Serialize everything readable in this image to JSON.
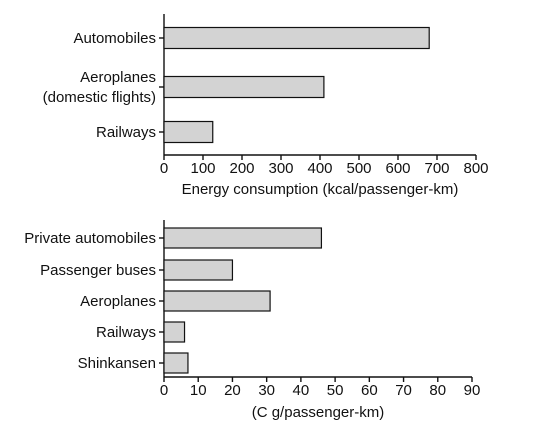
{
  "chart_data": [
    {
      "type": "bar",
      "orientation": "horizontal",
      "categories": [
        "Automobiles",
        "Aeroplanes\n(domestic flights)",
        "Railways"
      ],
      "values": [
        680,
        410,
        125
      ],
      "xlabel": "Energy consumption (kcal/passenger-km)",
      "xlim": [
        0,
        800
      ],
      "xticks": [
        0,
        100,
        200,
        300,
        400,
        500,
        600,
        700,
        800
      ],
      "grid": false
    },
    {
      "type": "bar",
      "orientation": "horizontal",
      "categories": [
        "Private automobiles",
        "Passenger buses",
        "Aeroplanes",
        "Railways",
        "Shinkansen"
      ],
      "values": [
        46,
        20,
        31,
        6,
        7
      ],
      "xlabel": "(C g/passenger-km)",
      "xlim": [
        0,
        90
      ],
      "xticks": [
        0,
        10,
        20,
        30,
        40,
        50,
        60,
        70,
        80,
        90
      ],
      "grid": false
    }
  ]
}
